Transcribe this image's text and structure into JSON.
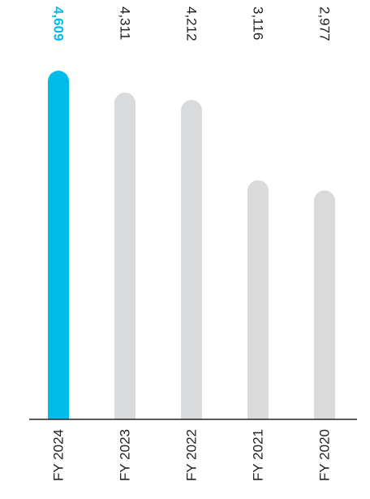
{
  "chart_data": {
    "type": "bar",
    "categories": [
      "FY 2024",
      "FY 2023",
      "FY 2022",
      "FY 2021",
      "FY 2020"
    ],
    "values": [
      4609,
      4311,
      4212,
      3116,
      2977
    ],
    "value_labels": [
      "4,609",
      "4,311",
      "4,212",
      "3,116",
      "2,977"
    ],
    "highlight_index": 0,
    "ylim": [
      0,
      4609
    ],
    "grid": false,
    "colors": {
      "highlight": "#00BCEB",
      "bar": "#D9DADC",
      "highlight_label": "#00BCEB",
      "label": "#222222",
      "axis": "#222222"
    }
  }
}
